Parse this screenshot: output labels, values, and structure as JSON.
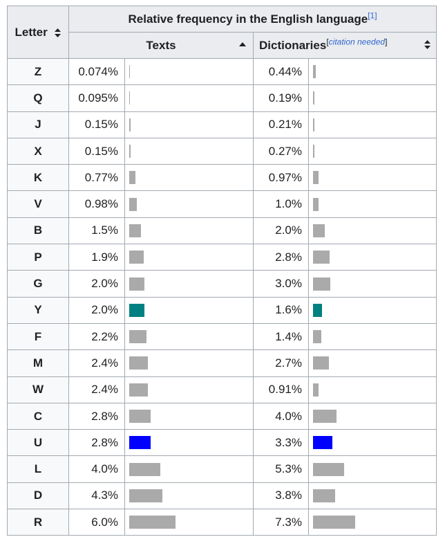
{
  "table": {
    "letter_header": "Letter",
    "group_header": "Relative frequency in the English language",
    "group_note": "[1]",
    "texts_header": "Texts",
    "dict_header": "Dictionaries",
    "dict_note": "[citation needed]",
    "dict_note_open": "[",
    "dict_note_text": "citation needed",
    "dict_note_close": "]"
  },
  "colors": {
    "bar": "#aaaaaa",
    "highlight_y": "#008080",
    "highlight_u": "#0000ff"
  },
  "chart_data": {
    "type": "table",
    "columns": [
      "Letter",
      "Texts",
      "Dictionaries"
    ],
    "sorted_by": "Texts",
    "sort_direction": "ascending",
    "rows": [
      {
        "letter": "Z",
        "texts": "0.074%",
        "texts_value": 0.074,
        "dict": "0.44%",
        "dict_value": 0.44,
        "color": "#aaaaaa"
      },
      {
        "letter": "Q",
        "texts": "0.095%",
        "texts_value": 0.095,
        "dict": "0.19%",
        "dict_value": 0.19,
        "color": "#aaaaaa"
      },
      {
        "letter": "J",
        "texts": "0.15%",
        "texts_value": 0.15,
        "dict": "0.21%",
        "dict_value": 0.21,
        "color": "#aaaaaa"
      },
      {
        "letter": "X",
        "texts": "0.15%",
        "texts_value": 0.15,
        "dict": "0.27%",
        "dict_value": 0.27,
        "color": "#aaaaaa"
      },
      {
        "letter": "K",
        "texts": "0.77%",
        "texts_value": 0.77,
        "dict": "0.97%",
        "dict_value": 0.97,
        "color": "#aaaaaa"
      },
      {
        "letter": "V",
        "texts": "0.98%",
        "texts_value": 0.98,
        "dict": "1.0%",
        "dict_value": 1.0,
        "color": "#aaaaaa"
      },
      {
        "letter": "B",
        "texts": "1.5%",
        "texts_value": 1.5,
        "dict": "2.0%",
        "dict_value": 2.0,
        "color": "#aaaaaa"
      },
      {
        "letter": "P",
        "texts": "1.9%",
        "texts_value": 1.9,
        "dict": "2.8%",
        "dict_value": 2.8,
        "color": "#aaaaaa"
      },
      {
        "letter": "G",
        "texts": "2.0%",
        "texts_value": 2.0,
        "dict": "3.0%",
        "dict_value": 3.0,
        "color": "#aaaaaa"
      },
      {
        "letter": "Y",
        "texts": "2.0%",
        "texts_value": 2.0,
        "dict": "1.6%",
        "dict_value": 1.6,
        "color": "#008080"
      },
      {
        "letter": "F",
        "texts": "2.2%",
        "texts_value": 2.2,
        "dict": "1.4%",
        "dict_value": 1.4,
        "color": "#aaaaaa"
      },
      {
        "letter": "M",
        "texts": "2.4%",
        "texts_value": 2.4,
        "dict": "2.7%",
        "dict_value": 2.7,
        "color": "#aaaaaa"
      },
      {
        "letter": "W",
        "texts": "2.4%",
        "texts_value": 2.4,
        "dict": "0.91%",
        "dict_value": 0.91,
        "color": "#aaaaaa"
      },
      {
        "letter": "C",
        "texts": "2.8%",
        "texts_value": 2.8,
        "dict": "4.0%",
        "dict_value": 4.0,
        "color": "#aaaaaa"
      },
      {
        "letter": "U",
        "texts": "2.8%",
        "texts_value": 2.8,
        "dict": "3.3%",
        "dict_value": 3.3,
        "color": "#0000ff"
      },
      {
        "letter": "L",
        "texts": "4.0%",
        "texts_value": 4.0,
        "dict": "5.3%",
        "dict_value": 5.3,
        "color": "#aaaaaa"
      },
      {
        "letter": "D",
        "texts": "4.3%",
        "texts_value": 4.3,
        "dict": "3.8%",
        "dict_value": 3.8,
        "color": "#aaaaaa"
      },
      {
        "letter": "R",
        "texts": "6.0%",
        "texts_value": 6.0,
        "dict": "7.3%",
        "dict_value": 7.3,
        "color": "#aaaaaa"
      }
    ]
  }
}
